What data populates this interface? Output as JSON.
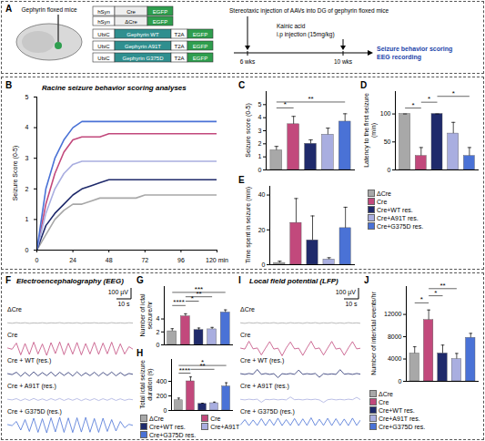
{
  "diagram": {
    "panel": "A",
    "mouse_label": "Gephyrin floxed mice",
    "constructs": [
      {
        "promoter": "hSyn",
        "gene": "Cre",
        "reporter": "EGFP"
      },
      {
        "promoter": "hSyn",
        "gene": "ΔCre",
        "reporter": "EGFP"
      },
      {
        "promoter": "UbiC",
        "gene": "Gephyrin WT",
        "linker": "T2A",
        "reporter": "EGFP"
      },
      {
        "promoter": "UbiC",
        "gene": "Gephyrin A91T",
        "linker": "T2A",
        "reporter": "EGFP"
      },
      {
        "promoter": "UbiC",
        "gene": "Gephyrin G375D",
        "linker": "T2A",
        "reporter": "EGFP"
      }
    ],
    "timeline": {
      "injection": "Stereotaxic injection of AAVs into DG of gephyrin floxed mice",
      "drug": "Kainic acid",
      "drug_route": "i.p injection (15mg/kg)",
      "readouts": [
        "Seizure behavior scoring",
        "EEG recording"
      ],
      "time_points": [
        "6 wks",
        "10 wks"
      ]
    }
  },
  "chart_data": [
    {
      "panel": "B",
      "type": "line",
      "title": "Racine seizure behavior scoring analyses",
      "y_label": "Seizure Score (0-5)",
      "x": [
        0,
        6,
        12,
        18,
        24,
        30,
        36,
        42,
        48,
        54,
        60,
        66,
        72,
        78,
        84,
        90,
        96,
        102,
        108,
        114,
        120
      ],
      "xlim": [
        0,
        120
      ],
      "xticks": [
        0,
        24,
        48,
        72,
        96,
        {
          "value": 120,
          "label": "120 min"
        }
      ],
      "ylim": [
        0,
        5
      ],
      "yticks": [
        0,
        1,
        2,
        3,
        4,
        5
      ],
      "series": [
        {
          "name": "ΔCre",
          "color": "#a8a8a8",
          "values": [
            0,
            0.5,
            1,
            1.3,
            1.5,
            1.5,
            1.6,
            1.7,
            1.7,
            1.7,
            1.7,
            1.7,
            1.8,
            1.8,
            1.8,
            1.8,
            1.8,
            1.8,
            1.8,
            1.8,
            1.8
          ]
        },
        {
          "name": "Cre",
          "color": "#c2497c",
          "values": [
            0,
            1.5,
            2.5,
            3.2,
            3.6,
            3.7,
            3.7,
            3.7,
            3.8,
            3.8,
            3.8,
            3.8,
            3.8,
            3.8,
            3.8,
            3.8,
            3.8,
            3.8,
            3.8,
            3.8,
            3.8
          ]
        },
        {
          "name": "Cre+WT res.",
          "color": "#1f2a6b",
          "values": [
            0,
            0.8,
            1.2,
            1.5,
            1.8,
            2.0,
            2.1,
            2.2,
            2.3,
            2.3,
            2.3,
            2.3,
            2.3,
            2.3,
            2.3,
            2.3,
            2.3,
            2.3,
            2.3,
            2.3,
            2.3
          ]
        },
        {
          "name": "Cre+A91T res.",
          "color": "#a9aee0",
          "values": [
            0,
            1.2,
            2.0,
            2.5,
            2.8,
            2.9,
            2.9,
            2.9,
            2.9,
            2.9,
            2.9,
            2.9,
            2.9,
            2.9,
            2.9,
            2.9,
            2.9,
            2.9,
            2.9,
            2.9,
            2.9
          ]
        },
        {
          "name": "Cre+G375D res.",
          "color": "#4a72d6",
          "values": [
            0,
            2.0,
            3.0,
            3.6,
            4.0,
            4.2,
            4.2,
            4.2,
            4.2,
            4.2,
            4.2,
            4.2,
            4.2,
            4.2,
            4.2,
            4.2,
            4.2,
            4.2,
            4.2,
            4.2,
            4.2
          ]
        }
      ]
    },
    {
      "panel": "C",
      "type": "bar",
      "y_label": "Seizure score (0-5)",
      "tick_labels": "y",
      "categories": [
        "ΔCre",
        "Cre",
        "Cre+WT res.",
        "Cre+A91T res.",
        "Cre+G375D res."
      ],
      "values": [
        1.5,
        3.5,
        2.0,
        2.7,
        3.7
      ],
      "errors": [
        0.3,
        0.6,
        0.3,
        0.5,
        0.6
      ],
      "colors": [
        "#a8a8a8",
        "#c2497c",
        "#1f2a6b",
        "#a9aee0",
        "#4a72d6"
      ],
      "ylim": [
        0,
        6
      ],
      "yticks": [
        0,
        1,
        2,
        3,
        4,
        5
      ],
      "significance": [
        {
          "from": 0,
          "to": 1,
          "label": "*"
        },
        {
          "from": 0,
          "to": 4,
          "label": "**"
        }
      ]
    },
    {
      "panel": "D",
      "type": "bar",
      "y_label": "Latency to the first seizure (min)",
      "tick_labels": "y",
      "categories": [
        "ΔCre",
        "Cre",
        "Cre+WT res.",
        "Cre+A91T res.",
        "Cre+G375D res."
      ],
      "values": [
        100,
        25,
        100,
        65,
        25
      ],
      "errors": [
        0,
        15,
        0,
        20,
        15
      ],
      "colors": [
        "#a8a8a8",
        "#c2497c",
        "#1f2a6b",
        "#a9aee0",
        "#4a72d6"
      ],
      "ylim": [
        0,
        140
      ],
      "yticks": [
        0,
        50,
        100
      ],
      "significance": [
        {
          "from": 0,
          "to": 1,
          "label": "*"
        },
        {
          "from": 1,
          "to": 2,
          "label": "*"
        },
        {
          "from": 2,
          "to": 4,
          "label": "*"
        }
      ]
    },
    {
      "panel": "E",
      "type": "bar",
      "y_label": "Time spent in seizure (min)",
      "tick_labels": "y",
      "legend": "right",
      "categories": [
        "ΔCre",
        "Cre",
        "Cre+WT res.",
        "Cre+A91T res.",
        "Cre+G375D res."
      ],
      "values": [
        1,
        24,
        14,
        3,
        21
      ],
      "errors": [
        1,
        14,
        14,
        1,
        12
      ],
      "colors": [
        "#a8a8a8",
        "#c2497c",
        "#1f2a6b",
        "#a9aee0",
        "#4a72d6"
      ],
      "ylim": [
        0,
        45
      ],
      "yticks": [
        0,
        20,
        40
      ],
      "significance": []
    },
    {
      "panel": "F",
      "type": "line",
      "title": "Electroencephalography (EEG)",
      "tick_labels": false,
      "scale_bar_labels": [
        "100 µV",
        "10 s"
      ],
      "x": [
        0,
        2,
        4,
        6,
        8,
        10,
        12,
        14,
        16,
        18,
        20,
        22,
        24,
        26,
        28,
        30,
        32,
        34,
        36,
        38,
        40,
        42,
        44,
        46,
        48,
        50,
        52,
        54,
        56,
        58
      ],
      "xlim": [
        0,
        58
      ],
      "ylim": [
        -100,
        100
      ],
      "series": [
        {
          "name": "ΔCre",
          "color": "#a8a8a8",
          "values": [
            2,
            -3,
            4,
            -2,
            3,
            -4,
            1,
            -2,
            3,
            -3,
            2,
            -1,
            4,
            -3,
            2,
            -2,
            3,
            -4,
            2,
            -1,
            3,
            -2,
            1,
            -3,
            4,
            -2,
            2,
            -3,
            3,
            -1
          ]
        },
        {
          "name": "Cre",
          "color": "#c2497c",
          "values": [
            5,
            -8,
            60,
            -70,
            55,
            -65,
            70,
            -60,
            50,
            -75,
            65,
            -55,
            72,
            -68,
            58,
            -62,
            66,
            -70,
            54,
            -60,
            68,
            -64,
            60,
            -58,
            70,
            -66,
            52,
            -60,
            20,
            -10
          ]
        },
        {
          "name": "Cre + WT (res.)",
          "color": "#1f2a6b",
          "values": [
            4,
            -6,
            20,
            -25,
            18,
            -22,
            24,
            -20,
            16,
            -18,
            22,
            -24,
            20,
            -16,
            18,
            -22,
            24,
            -20,
            14,
            -18,
            20,
            -22,
            18,
            -16,
            22,
            -20,
            16,
            -18,
            6,
            -4
          ]
        },
        {
          "name": "Cre + A91T (res.)",
          "color": "#a9aee0",
          "values": [
            3,
            -4,
            10,
            -12,
            8,
            -10,
            12,
            -9,
            7,
            -11,
            10,
            -8,
            12,
            -10,
            9,
            -8,
            11,
            -12,
            8,
            -9,
            10,
            -11,
            9,
            -8,
            12,
            -10,
            8,
            -9,
            4,
            -3
          ]
        },
        {
          "name": "Cre + G375D (res.)",
          "color": "#4a72d6",
          "values": [
            5,
            -6,
            40,
            -55,
            60,
            -70,
            75,
            -80,
            70,
            -85,
            80,
            -75,
            85,
            -80,
            78,
            -82,
            80,
            -76,
            84,
            -78,
            72,
            -80,
            75,
            -70,
            60,
            -65,
            40,
            -30,
            8,
            -5
          ]
        }
      ]
    },
    {
      "panel": "G",
      "type": "bar",
      "y_label": "Number of ictal seizure/hr",
      "tick_labels": "y",
      "categories": [
        "ΔCre",
        "Cre",
        "Cre+WT res.",
        "Cre+A91T",
        "Cre+G375D res."
      ],
      "values": [
        2.1,
        4.4,
        2.3,
        2.4,
        5.0
      ],
      "errors": [
        0.4,
        0.4,
        0.3,
        0.3,
        0.4
      ],
      "colors": [
        "#a8a8a8",
        "#c2497c",
        "#1f2a6b",
        "#a9aee0",
        "#4a72d6"
      ],
      "ylim": [
        0,
        9
      ],
      "yticks": [
        0,
        2,
        4
      ],
      "significance": [
        {
          "from": 0,
          "to": 1,
          "label": "****"
        },
        {
          "from": 1,
          "to": 2,
          "label": "*"
        },
        {
          "from": 1,
          "to": 3,
          "label": "**"
        },
        {
          "from": 0,
          "to": 4,
          "label": "***"
        }
      ]
    },
    {
      "panel": "H",
      "type": "bar",
      "y_label": "Total ictal seizure duration (s)",
      "tick_labels": "y",
      "legend": "bottom",
      "categories": [
        "ΔCre",
        "Cre",
        "Cre+WT res.",
        "Cre+A91T",
        "Cre+G375D res."
      ],
      "values": [
        140,
        400,
        90,
        100,
        330
      ],
      "errors": [
        30,
        60,
        10,
        15,
        50
      ],
      "colors": [
        "#a8a8a8",
        "#c2497c",
        "#1f2a6b",
        "#a9aee0",
        "#4a72d6"
      ],
      "ylim": [
        0,
        700
      ],
      "yticks": [
        0,
        200,
        400
      ],
      "significance": [
        {
          "from": 0,
          "to": 1,
          "label": "****"
        },
        {
          "from": 1,
          "to": 3,
          "label": "**"
        },
        {
          "from": 0,
          "to": 4,
          "label": "*"
        }
      ]
    },
    {
      "panel": "I",
      "type": "line",
      "title": "Local field potential (LFP)",
      "tick_labels": false,
      "scale_bar_labels": [
        "100 µV",
        "10 s"
      ],
      "x": [
        0,
        2,
        4,
        6,
        8,
        10,
        12,
        14,
        16,
        18,
        20,
        22,
        24,
        26,
        28,
        30,
        32,
        34,
        36,
        38,
        40,
        42,
        44,
        46,
        48,
        50,
        52,
        54,
        56,
        58
      ],
      "xlim": [
        0,
        58
      ],
      "ylim": [
        -50,
        50
      ],
      "series": [
        {
          "name": "ΔCre",
          "color": "#a8a8a8",
          "values": [
            1,
            -2,
            2,
            -1,
            2,
            -2,
            1,
            -1,
            2,
            -2,
            1,
            -2,
            2,
            -1,
            1,
            -2,
            2,
            -1,
            2,
            -2,
            1,
            -1,
            2,
            -2,
            1,
            -2,
            2,
            -1,
            1,
            -2
          ]
        },
        {
          "name": "Cre",
          "color": "#c2497c",
          "values": [
            2,
            -3,
            40,
            -2,
            3,
            -35,
            2,
            38,
            -3,
            2,
            -40,
            3,
            36,
            -2,
            2,
            -38,
            3,
            40,
            -2,
            3,
            -36,
            2,
            39,
            -3,
            2,
            -37,
            3,
            38,
            -2,
            2
          ]
        },
        {
          "name": "Cre + WT (res.)",
          "color": "#1f2a6b",
          "values": [
            2,
            -2,
            3,
            -1,
            25,
            -2,
            3,
            -2,
            2,
            -20,
            2,
            -1,
            3,
            -2,
            22,
            -2,
            2,
            -1,
            3,
            -18,
            2,
            -2,
            1,
            -2,
            24,
            -1,
            2,
            -2,
            3,
            -1
          ]
        },
        {
          "name": "Cre + A91T (res.)",
          "color": "#a9aee0",
          "values": [
            1,
            -2,
            2,
            -1,
            2,
            -15,
            1,
            -1,
            2,
            -2,
            1,
            -2,
            14,
            -1,
            1,
            -2,
            2,
            -1,
            2,
            -2,
            -16,
            -1,
            2,
            -2,
            1,
            -2,
            2,
            -1,
            12,
            -2
          ]
        },
        {
          "name": "Cre + G375D (res.)",
          "color": "#4a72d6",
          "values": [
            2,
            30,
            -3,
            28,
            -2,
            35,
            -3,
            32,
            -2,
            38,
            -3,
            30,
            -2,
            36,
            -3,
            34,
            -2,
            40,
            -3,
            32,
            -2,
            37,
            -3,
            35,
            -2,
            33,
            -3,
            38,
            -2,
            30
          ]
        }
      ]
    },
    {
      "panel": "J",
      "type": "bar",
      "y_label": "Number of interictal events/hr",
      "tick_labels": "y",
      "legend": "bottom",
      "categories": [
        "ΔCre",
        "Cre",
        "Cre+WT res.",
        "Cre+A91T res.",
        "Cre+G375D res."
      ],
      "values": [
        5000,
        11000,
        5000,
        4000,
        7800
      ],
      "errors": [
        1200,
        1800,
        1500,
        1000,
        800
      ],
      "colors": [
        "#a8a8a8",
        "#c2497c",
        "#1f2a6b",
        "#a9aee0",
        "#4a72d6"
      ],
      "ylim": [
        0,
        17000
      ],
      "yticks": [
        0,
        4000,
        8000,
        12000
      ],
      "significance": [
        {
          "from": 0,
          "to": 1,
          "label": "*"
        },
        {
          "from": 1,
          "to": 2,
          "label": "*"
        },
        {
          "from": 1,
          "to": 3,
          "label": "**"
        }
      ]
    }
  ]
}
